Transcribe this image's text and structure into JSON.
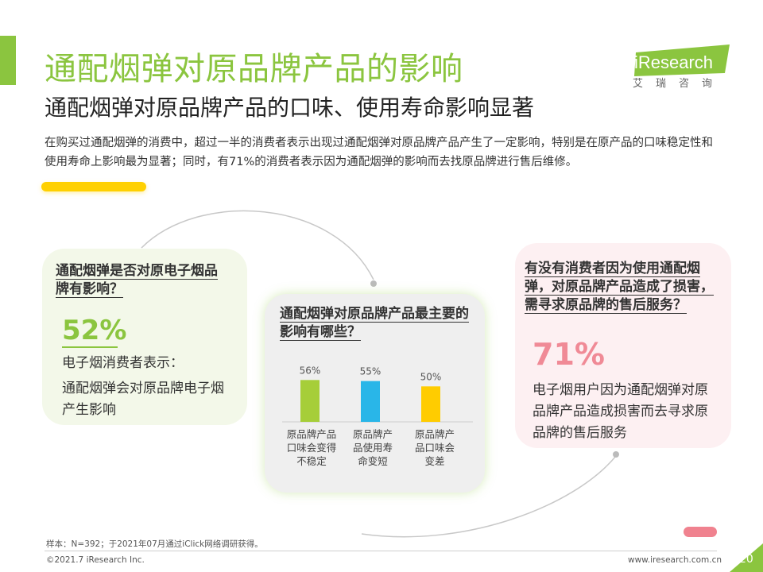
{
  "header": {
    "title": "通配烟弹对原品牌产品的影响",
    "subtitle": "通配烟弹对原品牌产品的口味、使用寿命影响显著",
    "description": "在购买过通配烟弹的消费中，超过一半的消费者表示出现过通配烟弹对原品牌产品产生了一定影响，特别是在原产品的口味稳定性和使用寿命上影响最为显著；同时，有71%的消费者表示因为通配烟弹的影响而去找原品牌进行售后维修。",
    "logo_text": "iResearch",
    "logo_sub": "艾瑞咨询"
  },
  "left_card": {
    "question": "通配烟弹是否对原电子烟品牌有影响？",
    "percent": "52%",
    "line1": "电子烟消费者表示：",
    "line2": "通配烟弹会对原品牌电子烟产生影响"
  },
  "mid_card": {
    "question": "通配烟弹对原品牌产品最主要的影响有哪些？"
  },
  "right_card": {
    "question": "有没有消费者因为使用通配烟弹，对原品牌产品造成了损害，需寻求原品牌的售后服务？",
    "percent": "71%",
    "text": "电子烟用户因为通配烟弹对原品牌产品造成损害而去寻求原品牌的售后服务"
  },
  "chart_data": {
    "type": "bar",
    "categories": [
      "原品牌产品口味会变得不稳定",
      "原品牌产品使用寿命变短",
      "原品牌产品口味会变差"
    ],
    "category_lines": [
      [
        "原品牌产品",
        "口味会变得",
        "不稳定"
      ],
      [
        "原品牌产",
        "品使用寿",
        "命变短"
      ],
      [
        "原品牌产",
        "品口味会",
        "变差"
      ]
    ],
    "values": [
      56,
      55,
      50
    ],
    "value_labels": [
      "56%",
      "55%",
      "50%"
    ],
    "colors": [
      "#a6ce39",
      "#29b6e8",
      "#ffcc00"
    ],
    "ylim": [
      0,
      60
    ],
    "grid": false
  },
  "footer": {
    "footnote": "样本：N=392；于2021年07月通过iClick网络调研获得。",
    "copyright": "©2021.7 iResearch Inc.",
    "website": "www.iresearch.com.cn",
    "page": "20"
  },
  "colors": {
    "brand_green": "#8bc53f",
    "accent_yellow": "#ffd000",
    "accent_pink": "#f0828f"
  }
}
